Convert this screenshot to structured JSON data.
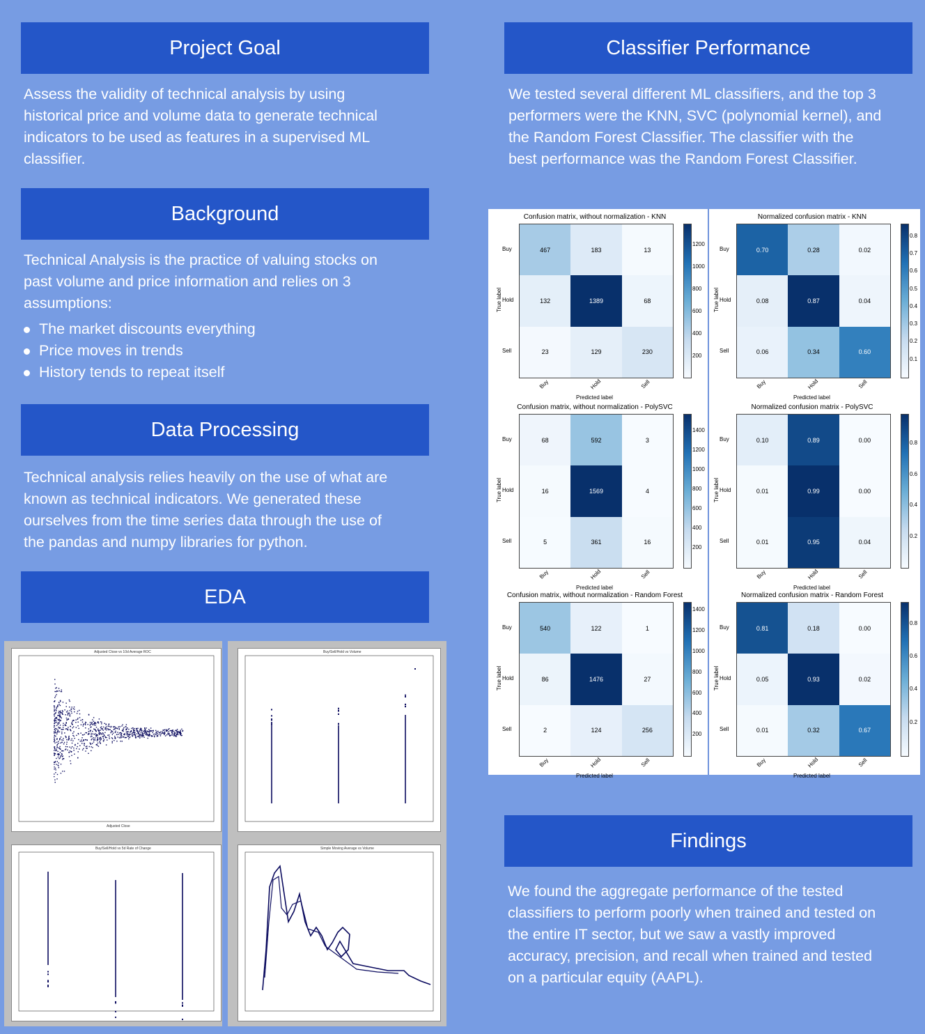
{
  "sections": {
    "project_goal": {
      "title": "Project Goal",
      "lines": [
        "Assess  the validity of technical analysis by using",
        "historical price and volume data to generate technical",
        "indicators to be used as features in a supervised  ML",
        "classifier."
      ]
    },
    "background": {
      "title": "Background",
      "lines": [
        "Technical Analysis is the practice of valuing stocks on",
        "past volume and price information and relies on 3",
        "assumptions:"
      ],
      "bullets": [
        "The market discounts everything",
        "Price moves in trends",
        "History tends to repeat itself"
      ]
    },
    "data_processing": {
      "title": "Data Processing",
      "lines": [
        "Technical analysis relies heavily on the use of what are",
        "known as technical indicators.  We generated these",
        "ourselves from the time series data through the use of",
        "the pandas and numpy libraries for python."
      ]
    },
    "eda": {
      "title": "EDA"
    },
    "classifier_performance": {
      "title": "Classifier Performance",
      "lines": [
        "We tested several different ML classifiers, and the top 3",
        "performers were the KNN, SVC (polynomial kernel), and",
        "the Random Forest Classifier.  The classifier with the",
        "best performance was the Random Forest Classifier."
      ]
    },
    "findings": {
      "title": "Findings",
      "lines": [
        "We found the aggregate  performance of the tested",
        "classifiers to perform poorly when trained and tested on",
        "the entire IT sector, but we saw a vastly improved",
        "accuracy, precision, and recall when trained and tested",
        "on a particular equity (AAPL)."
      ]
    }
  },
  "chart_data": [
    {
      "type": "heatmap",
      "title": "Confusion matrix, without normalization - KNN",
      "xlabel": "Predicted label",
      "ylabel": "True label",
      "x": [
        "Buy",
        "Hold",
        "Sell"
      ],
      "y": [
        "Buy",
        "Hold",
        "Sell"
      ],
      "values": [
        [
          467,
          183,
          13
        ],
        [
          132,
          1389,
          68
        ],
        [
          23,
          129,
          230
        ]
      ],
      "vmax": 1389,
      "colorbar_ticks": [
        200,
        400,
        600,
        800,
        1000,
        1200
      ]
    },
    {
      "type": "heatmap",
      "title": "Normalized confusion matrix - KNN",
      "xlabel": "Predicted label",
      "ylabel": "True label",
      "x": [
        "Buy",
        "Hold",
        "Sell"
      ],
      "y": [
        "Buy",
        "Hold",
        "Sell"
      ],
      "values": [
        [
          0.7,
          0.28,
          0.02
        ],
        [
          0.08,
          0.87,
          0.04
        ],
        [
          0.06,
          0.34,
          0.6
        ]
      ],
      "vmax": 0.87,
      "colorbar_ticks": [
        0.1,
        0.2,
        0.3,
        0.4,
        0.5,
        0.6,
        0.7,
        0.8
      ]
    },
    {
      "type": "heatmap",
      "title": "Confusion matrix, without normalization - PolySVC",
      "xlabel": "Predicted label",
      "ylabel": "True label",
      "x": [
        "Buy",
        "Hold",
        "Sell"
      ],
      "y": [
        "Buy",
        "Hold",
        "Sell"
      ],
      "values": [
        [
          68,
          592,
          3
        ],
        [
          16,
          1569,
          4
        ],
        [
          5,
          361,
          16
        ]
      ],
      "vmax": 1569,
      "colorbar_ticks": [
        200,
        400,
        600,
        800,
        1000,
        1200,
        1400
      ]
    },
    {
      "type": "heatmap",
      "title": "Normalized confusion matrix - PolySVC",
      "xlabel": "Predicted label",
      "ylabel": "True label",
      "x": [
        "Buy",
        "Hold",
        "Sell"
      ],
      "y": [
        "Buy",
        "Hold",
        "Sell"
      ],
      "values": [
        [
          0.1,
          0.89,
          0.0
        ],
        [
          0.01,
          0.99,
          0.0
        ],
        [
          0.01,
          0.95,
          0.04
        ]
      ],
      "vmax": 0.99,
      "colorbar_ticks": [
        0.2,
        0.4,
        0.6,
        0.8
      ]
    },
    {
      "type": "heatmap",
      "title": "Confusion matrix, without normalization - Random Forest",
      "xlabel": "Predicted label",
      "ylabel": "True label",
      "x": [
        "Buy",
        "Hold",
        "Sell"
      ],
      "y": [
        "Buy",
        "Hold",
        "Sell"
      ],
      "values": [
        [
          540,
          122,
          1
        ],
        [
          86,
          1476,
          27
        ],
        [
          2,
          124,
          256
        ]
      ],
      "vmax": 1476,
      "colorbar_ticks": [
        200,
        400,
        600,
        800,
        1000,
        1200,
        1400
      ]
    },
    {
      "type": "heatmap",
      "title": "Normalized confusion matrix - Random Forest",
      "xlabel": "Predicted label",
      "ylabel": "True label",
      "x": [
        "Buy",
        "Hold",
        "Sell"
      ],
      "y": [
        "Buy",
        "Hold",
        "Sell"
      ],
      "values": [
        [
          0.81,
          0.18,
          0.0
        ],
        [
          0.05,
          0.93,
          0.02
        ],
        [
          0.01,
          0.32,
          0.67
        ]
      ],
      "vmax": 0.93,
      "colorbar_ticks": [
        0.2,
        0.4,
        0.6,
        0.8
      ]
    },
    {
      "type": "scatter",
      "title": "Adjusted Close vs 10d Average ROC",
      "xlabel": "Adjusted Close"
    },
    {
      "type": "scatter",
      "title": "Buy/Sell/Hold vs Volume"
    },
    {
      "type": "scatter",
      "title": "Buy/Sell/Hold vs 5d Rate of Change"
    },
    {
      "type": "line",
      "title": "Simple Moving Average vs Volume"
    }
  ]
}
